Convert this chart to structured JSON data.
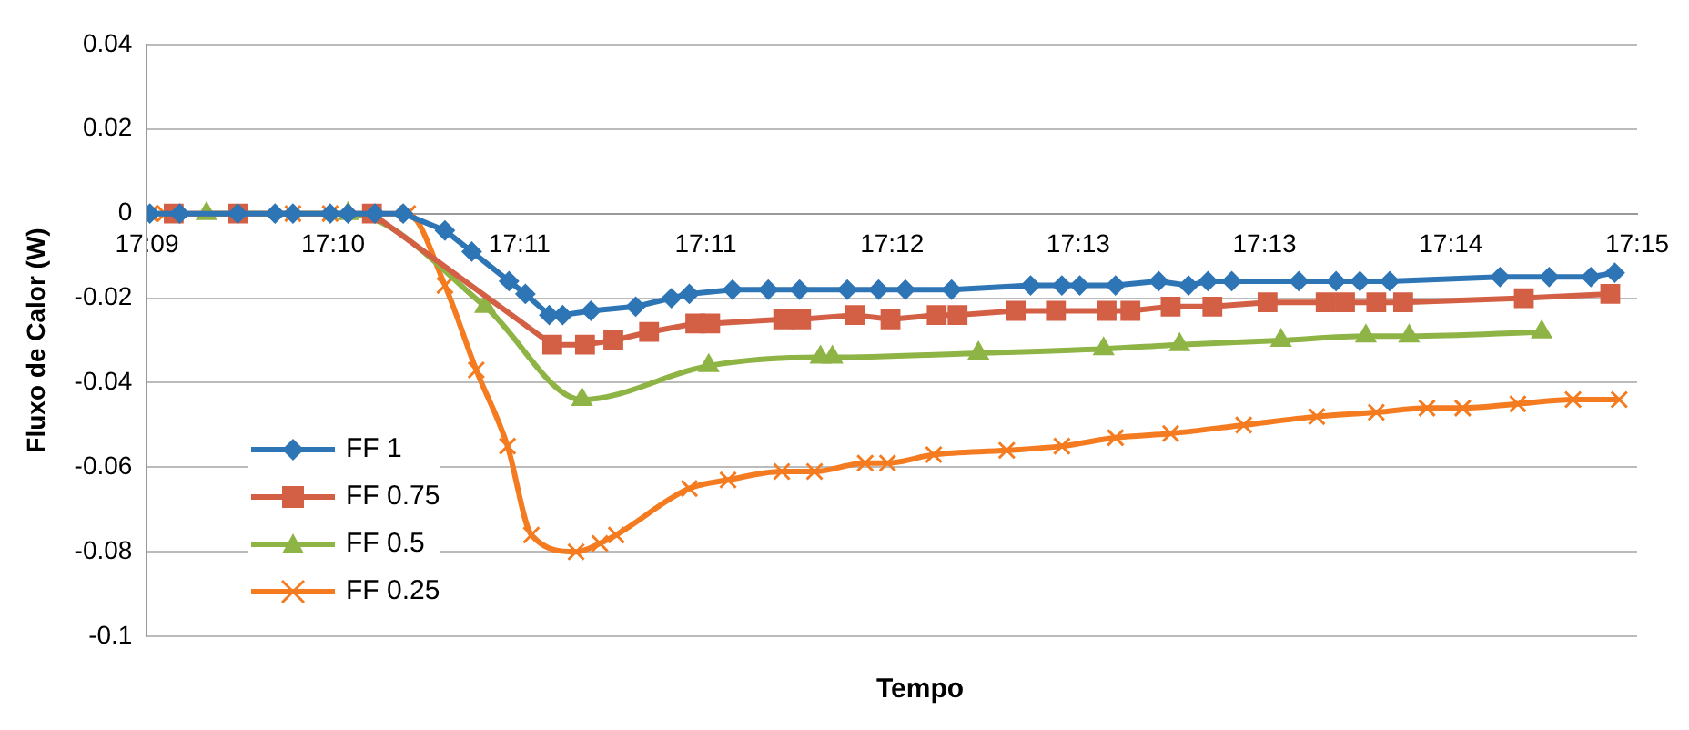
{
  "chart_data": {
    "type": "line",
    "xlabel": "Tempo",
    "ylabel": "Fluxo de Calor (W)",
    "xlim": [
      17.15,
      17.25
    ],
    "xticks": [
      {
        "value": 17.15,
        "label": "17:09"
      },
      {
        "value": 17.1625,
        "label": "17:10"
      },
      {
        "value": 17.175,
        "label": "17:11"
      },
      {
        "value": 17.1875,
        "label": "17:11"
      },
      {
        "value": 17.2,
        "label": "17:12"
      },
      {
        "value": 17.2125,
        "label": "17:13"
      },
      {
        "value": 17.225,
        "label": "17:13"
      },
      {
        "value": 17.2375,
        "label": "17:14"
      },
      {
        "value": 17.25,
        "label": "17:15"
      }
    ],
    "ylim": [
      -0.1,
      0.04
    ],
    "yticks": [
      0.04,
      0.02,
      0,
      -0.02,
      -0.04,
      -0.06,
      -0.08,
      -0.1
    ],
    "grid": "y",
    "legend": "bottom left",
    "series": [
      {
        "name": "FF 1",
        "color": "#2e75b6",
        "marker": "diamond",
        "x": [
          17.1502,
          17.1522,
          17.1561,
          17.1586,
          17.1598,
          17.1623,
          17.1635,
          17.1653,
          17.1672,
          17.17,
          17.1718,
          17.1743,
          17.1754,
          17.177,
          17.1779,
          17.1798,
          17.1828,
          17.1852,
          17.1864,
          17.1893,
          17.1917,
          17.1938,
          17.197,
          17.1991,
          17.2009,
          17.204,
          17.2093,
          17.2114,
          17.2126,
          17.215,
          17.2179,
          17.2199,
          17.2212,
          17.2228,
          17.2273,
          17.2298,
          17.2314,
          17.2334,
          17.2408,
          17.2441,
          17.2469,
          17.2485
        ],
        "values": [
          0,
          0,
          0,
          0,
          0,
          0,
          0,
          0,
          0,
          -0.004,
          -0.009,
          -0.016,
          -0.019,
          -0.024,
          -0.024,
          -0.023,
          -0.022,
          -0.02,
          -0.019,
          -0.018,
          -0.018,
          -0.018,
          -0.018,
          -0.018,
          -0.018,
          -0.018,
          -0.017,
          -0.017,
          -0.017,
          -0.017,
          -0.016,
          -0.017,
          -0.016,
          -0.016,
          -0.016,
          -0.016,
          -0.016,
          -0.016,
          -0.015,
          -0.015,
          -0.015,
          -0.014
        ]
      },
      {
        "name": "FF 0.75",
        "color": "#d35f45",
        "marker": "square",
        "x": [
          17.1518,
          17.1561,
          17.1651,
          17.1772,
          17.1794,
          17.1813,
          17.1837,
          17.1868,
          17.1878,
          17.1927,
          17.1939,
          17.1975,
          17.1999,
          17.203,
          17.2044,
          17.2083,
          17.211,
          17.2144,
          17.216,
          17.2187,
          17.2215,
          17.2252,
          17.2291,
          17.2304,
          17.2325,
          17.2343,
          17.2424,
          17.2482
        ],
        "values": [
          0,
          0,
          0,
          -0.031,
          -0.031,
          -0.03,
          -0.028,
          -0.026,
          -0.026,
          -0.025,
          -0.025,
          -0.024,
          -0.025,
          -0.024,
          -0.024,
          -0.023,
          -0.023,
          -0.023,
          -0.023,
          -0.022,
          -0.022,
          -0.021,
          -0.021,
          -0.021,
          -0.021,
          -0.021,
          -0.02,
          -0.019
        ]
      },
      {
        "name": "FF 0.5",
        "color": "#8fb446",
        "marker": "triangle",
        "x": [
          17.154,
          17.1635,
          17.1727,
          17.1792,
          17.1877,
          17.1952,
          17.196,
          17.2058,
          17.2142,
          17.2193,
          17.2261,
          17.2318,
          17.2347,
          17.2436
        ],
        "values": [
          0,
          0,
          -0.022,
          -0.044,
          -0.036,
          -0.034,
          -0.034,
          -0.033,
          -0.032,
          -0.031,
          -0.03,
          -0.029,
          -0.029,
          -0.028
        ]
      },
      {
        "name": "FF 0.25",
        "color": "#f47b20",
        "marker": "cross",
        "x": [
          17.1502,
          17.1512,
          17.1561,
          17.1598,
          17.1623,
          17.1675,
          17.17,
          17.1721,
          17.1742,
          17.1758,
          17.1788,
          17.1804,
          17.1815,
          17.1864,
          17.189,
          17.1926,
          17.1948,
          17.1982,
          17.1997,
          17.2028,
          17.2077,
          17.2114,
          17.215,
          17.2187,
          17.2236,
          17.2285,
          17.2325,
          17.2359,
          17.2383,
          17.242,
          17.2457,
          17.2488
        ],
        "values": [
          0,
          0,
          0,
          0,
          0,
          0,
          -0.017,
          -0.037,
          -0.055,
          -0.076,
          -0.08,
          -0.078,
          -0.076,
          -0.065,
          -0.063,
          -0.061,
          -0.061,
          -0.059,
          -0.059,
          -0.057,
          -0.056,
          -0.055,
          -0.053,
          -0.052,
          -0.05,
          -0.048,
          -0.047,
          -0.046,
          -0.046,
          -0.045,
          -0.044,
          -0.044
        ]
      }
    ]
  }
}
